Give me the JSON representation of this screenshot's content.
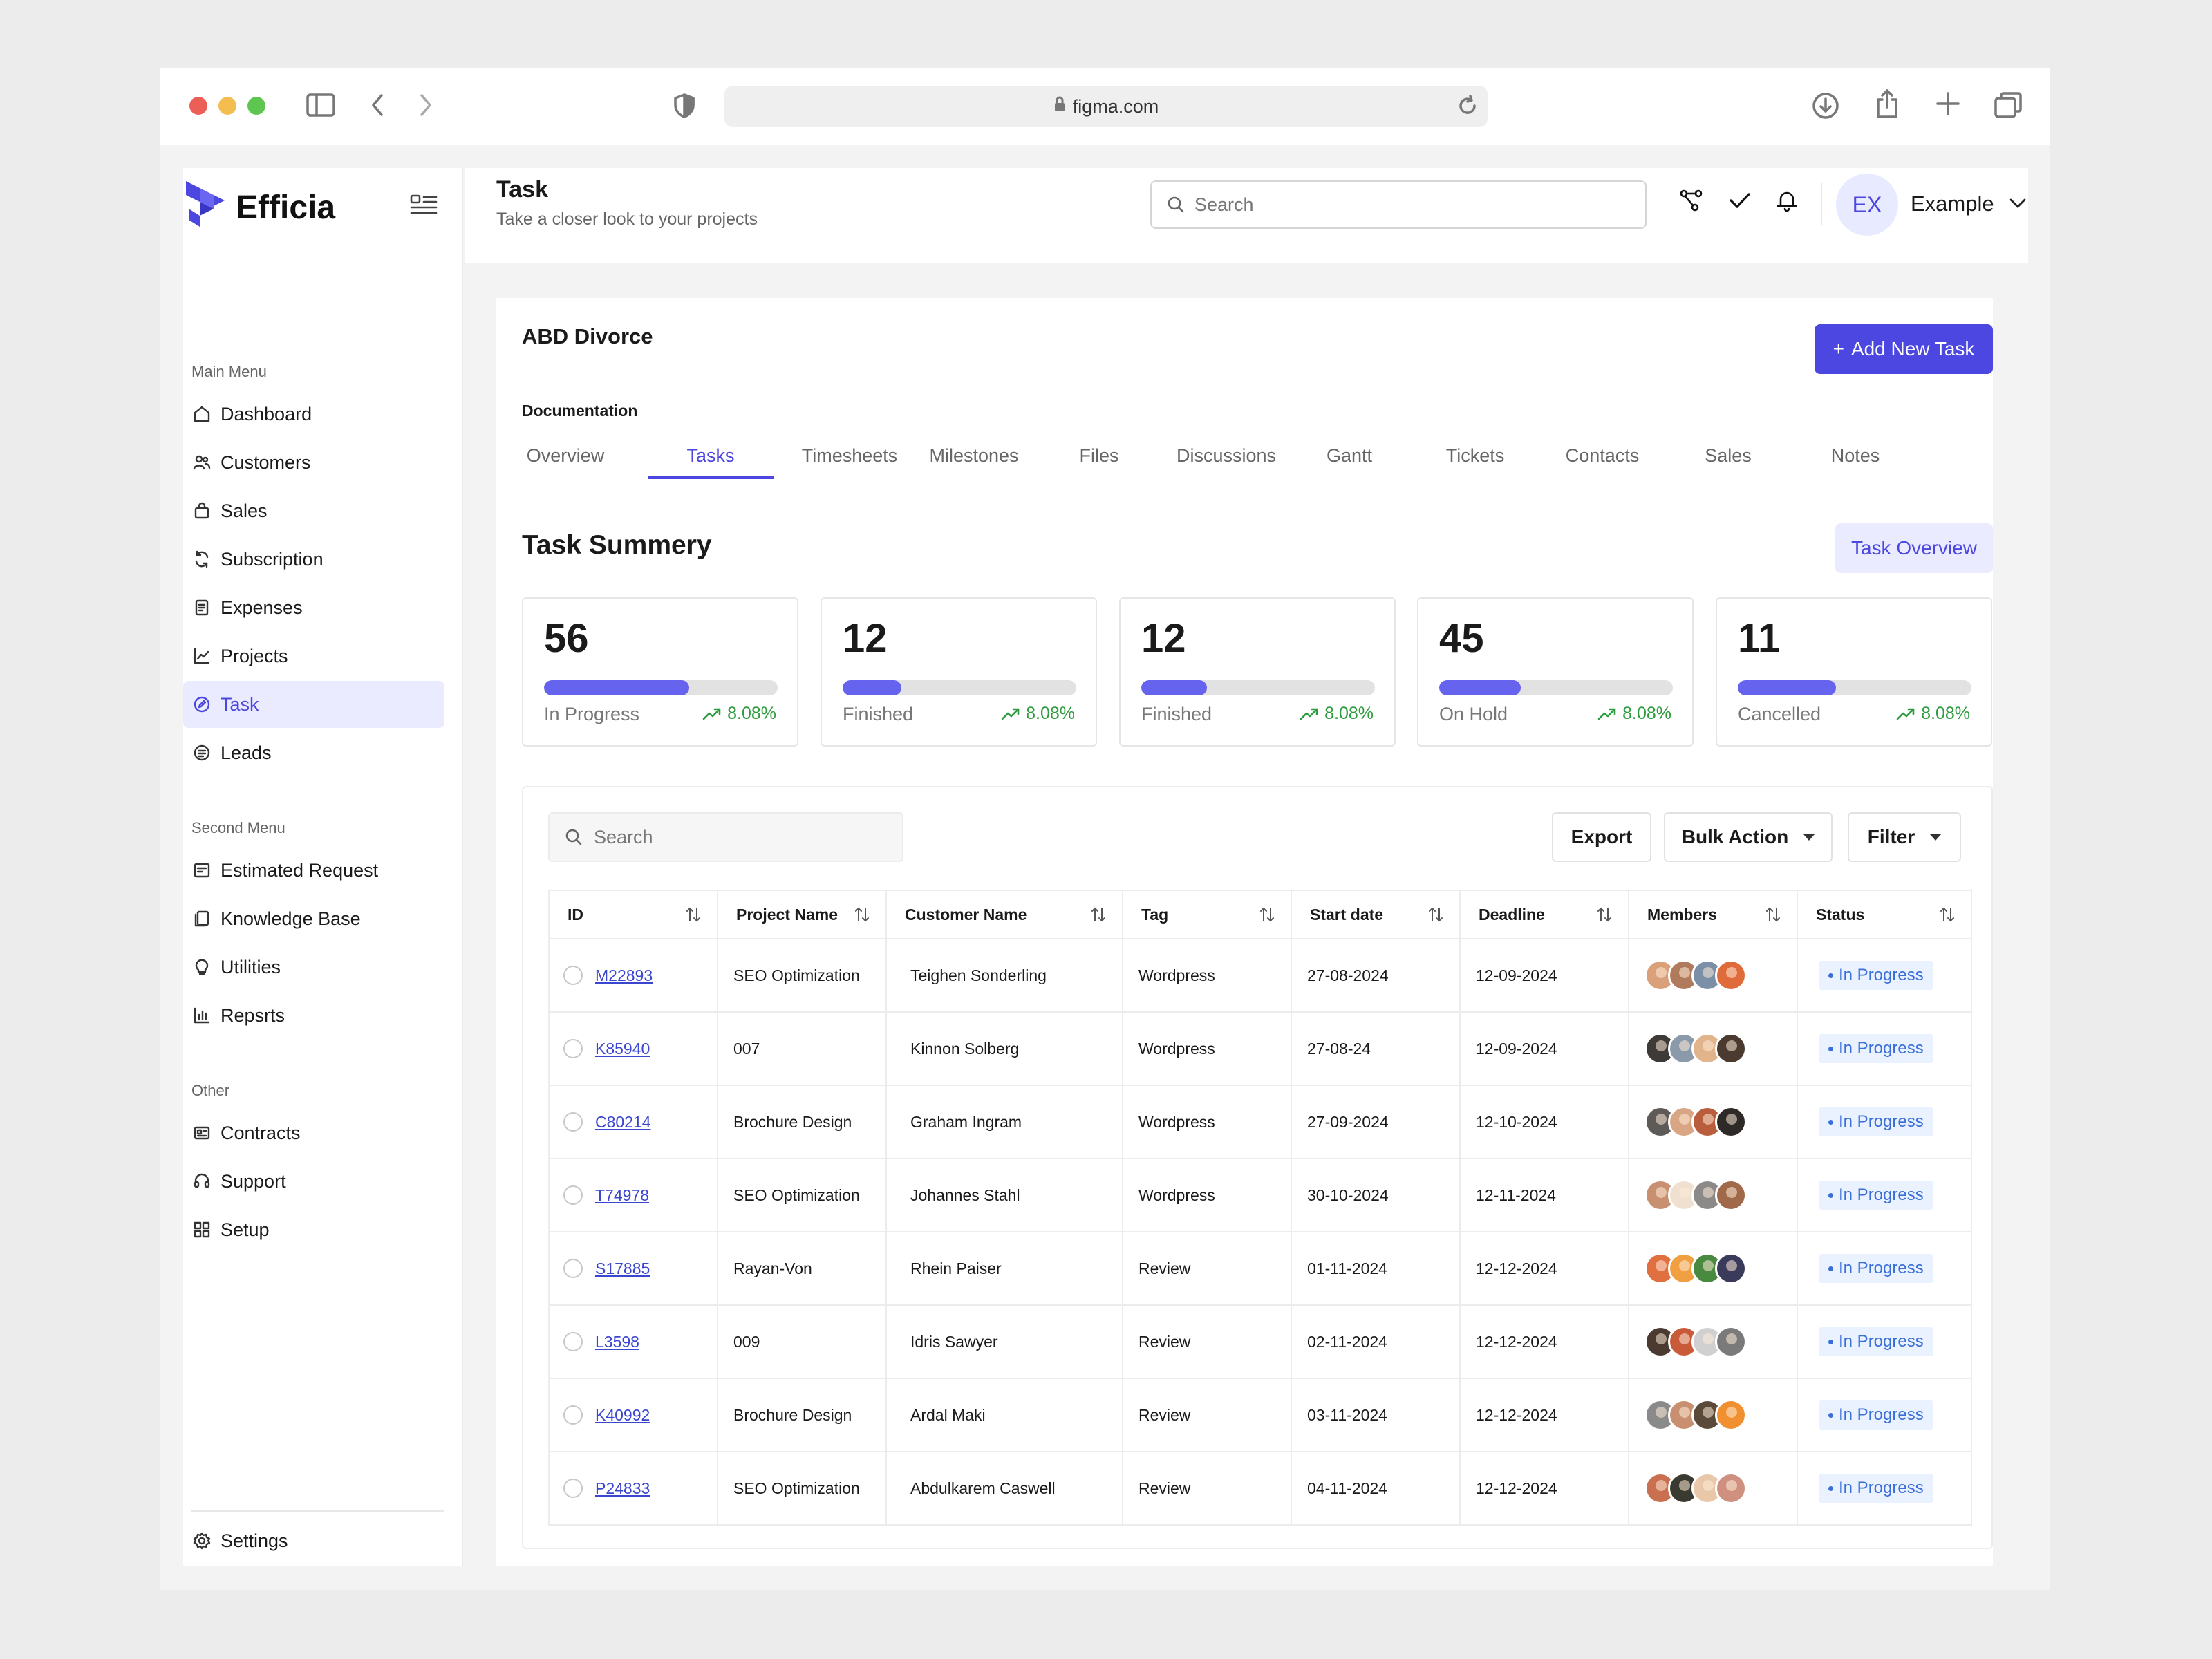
{
  "browser": {
    "url": "figma.com"
  },
  "brand": {
    "name": "Efficia",
    "accent": "#4c47e0"
  },
  "header": {
    "title": "Task",
    "subtitle": "Take a closer look to your projects",
    "search_placeholder": "Search",
    "user_initials": "EX",
    "user_name": "Example"
  },
  "sidebar": {
    "main_label": "Main Menu",
    "main_items": [
      {
        "label": "Dashboard",
        "icon": "home-icon"
      },
      {
        "label": "Customers",
        "icon": "users-icon"
      },
      {
        "label": "Sales",
        "icon": "bag-icon"
      },
      {
        "label": "Subscription",
        "icon": "refresh-icon"
      },
      {
        "label": "Expenses",
        "icon": "receipt-icon"
      },
      {
        "label": "Projects",
        "icon": "chart-icon"
      },
      {
        "label": "Task",
        "icon": "edit-icon",
        "active": true
      },
      {
        "label": "Leads",
        "icon": "list-circle-icon"
      }
    ],
    "second_label": "Second Menu",
    "second_items": [
      {
        "label": "Estimated Request",
        "icon": "request-icon"
      },
      {
        "label": "Knowledge Base",
        "icon": "book-icon"
      },
      {
        "label": "Utilities",
        "icon": "bulb-icon"
      },
      {
        "label": "Repsrts",
        "icon": "bar-chart-icon"
      }
    ],
    "other_label": "Other",
    "other_items": [
      {
        "label": "Contracts",
        "icon": "contract-icon"
      },
      {
        "label": "Support",
        "icon": "headset-icon"
      },
      {
        "label": "Setup",
        "icon": "grid-icon"
      }
    ],
    "settings_label": "Settings"
  },
  "project": {
    "name": "ABD Divorce",
    "add_button": "Add New Task",
    "section_label": "Documentation",
    "tabs": [
      "Overview",
      "Tasks",
      "Timesheets",
      "Milestones",
      "Files",
      "Discussions",
      "Gantt",
      "Tickets",
      "Contacts",
      "Sales",
      "Notes"
    ],
    "active_tab": "Tasks"
  },
  "summary": {
    "title": "Task Summery",
    "overview_button": "Task Overview",
    "cards": [
      {
        "value": "56",
        "label": "In Progress",
        "trend": "8.08%",
        "progress": 0.62
      },
      {
        "value": "12",
        "label": "Finished",
        "trend": "8.08%",
        "progress": 0.25
      },
      {
        "value": "12",
        "label": "Finished",
        "trend": "8.08%",
        "progress": 0.28
      },
      {
        "value": "45",
        "label": "On Hold",
        "trend": "8.08%",
        "progress": 0.35
      },
      {
        "value": "11",
        "label": "Cancelled",
        "trend": "8.08%",
        "progress": 0.42
      }
    ]
  },
  "table": {
    "search_placeholder": "Search",
    "export_label": "Export",
    "bulk_label": "Bulk Action",
    "filter_label": "Filter",
    "columns": [
      "ID",
      "Project Name",
      "Customer Name",
      "Tag",
      "Start date",
      "Deadline",
      "Members",
      "Status"
    ],
    "rows": [
      {
        "id": "M22893",
        "project": "SEO Optimization",
        "customer": "Teighen Sonderling",
        "tag": "Wordpress",
        "start": "27-08-2024",
        "deadline": "12-09-2024",
        "status": "In Progress"
      },
      {
        "id": "K85940",
        "project": "007",
        "customer": "Kinnon Solberg",
        "tag": "Wordpress",
        "start": "27-08-24",
        "deadline": "12-09-2024",
        "status": "In Progress"
      },
      {
        "id": "C80214",
        "project": "Brochure Design",
        "customer": "Graham Ingram",
        "tag": "Wordpress",
        "start": "27-09-2024",
        "deadline": "12-10-2024",
        "status": "In Progress"
      },
      {
        "id": "T74978",
        "project": "SEO Optimization",
        "customer": "Johannes Stahl",
        "tag": "Wordpress",
        "start": "30-10-2024",
        "deadline": "12-11-2024",
        "status": "In Progress"
      },
      {
        "id": "S17885",
        "project": "Rayan-Von",
        "customer": "Rhein Paiser",
        "tag": "Review",
        "start": "01-11-2024",
        "deadline": "12-12-2024",
        "status": "In Progress"
      },
      {
        "id": "L3598",
        "project": "009",
        "customer": "Idris Sawyer",
        "tag": "Review",
        "start": "02-11-2024",
        "deadline": "12-12-2024",
        "status": "In Progress"
      },
      {
        "id": "K40992",
        "project": "Brochure Design",
        "customer": "Ardal Maki",
        "tag": "Review",
        "start": "03-11-2024",
        "deadline": "12-12-2024",
        "status": "In Progress"
      },
      {
        "id": "P24833",
        "project": "SEO Optimization",
        "customer": "Abdulkarem Caswell",
        "tag": "Review",
        "start": "04-11-2024",
        "deadline": "12-12-2024",
        "status": "In Progress"
      }
    ]
  }
}
